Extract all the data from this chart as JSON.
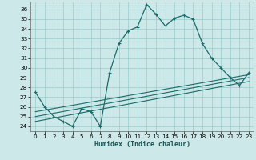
{
  "xlabel": "Humidex (Indice chaleur)",
  "bg_color": "#cce8e8",
  "grid_color": "#99cccc",
  "line_color": "#1a6b6b",
  "x_ticks": [
    0,
    1,
    2,
    3,
    4,
    5,
    6,
    7,
    8,
    9,
    10,
    11,
    12,
    13,
    14,
    15,
    16,
    17,
    18,
    19,
    20,
    21,
    22,
    23
  ],
  "y_ticks": [
    24,
    25,
    26,
    27,
    28,
    29,
    30,
    31,
    32,
    33,
    34,
    35,
    36
  ],
  "xlim": [
    -0.5,
    23.5
  ],
  "ylim": [
    23.5,
    36.8
  ],
  "main_curve_x": [
    0,
    1,
    2,
    3,
    4,
    5,
    6,
    7,
    8,
    9,
    10,
    11,
    12,
    13,
    14,
    15,
    16,
    17,
    18,
    19,
    20,
    21,
    22,
    23
  ],
  "main_curve_y": [
    27.5,
    26.0,
    25.0,
    24.5,
    24.0,
    25.8,
    25.5,
    24.0,
    29.5,
    32.5,
    33.8,
    34.2,
    36.5,
    35.5,
    34.3,
    35.1,
    35.4,
    35.0,
    32.5,
    31.0,
    30.0,
    29.0,
    28.2,
    29.5
  ],
  "line1_x": [
    0,
    23
  ],
  "line1_y": [
    25.5,
    29.3
  ],
  "line2_x": [
    0,
    23
  ],
  "line2_y": [
    25.0,
    29.0
  ],
  "line3_x": [
    0,
    23
  ],
  "line3_y": [
    24.5,
    28.6
  ],
  "xlabel_fontsize": 6.0,
  "tick_fontsize": 5.2,
  "linewidth_main": 0.9,
  "linewidth_trend": 0.8
}
